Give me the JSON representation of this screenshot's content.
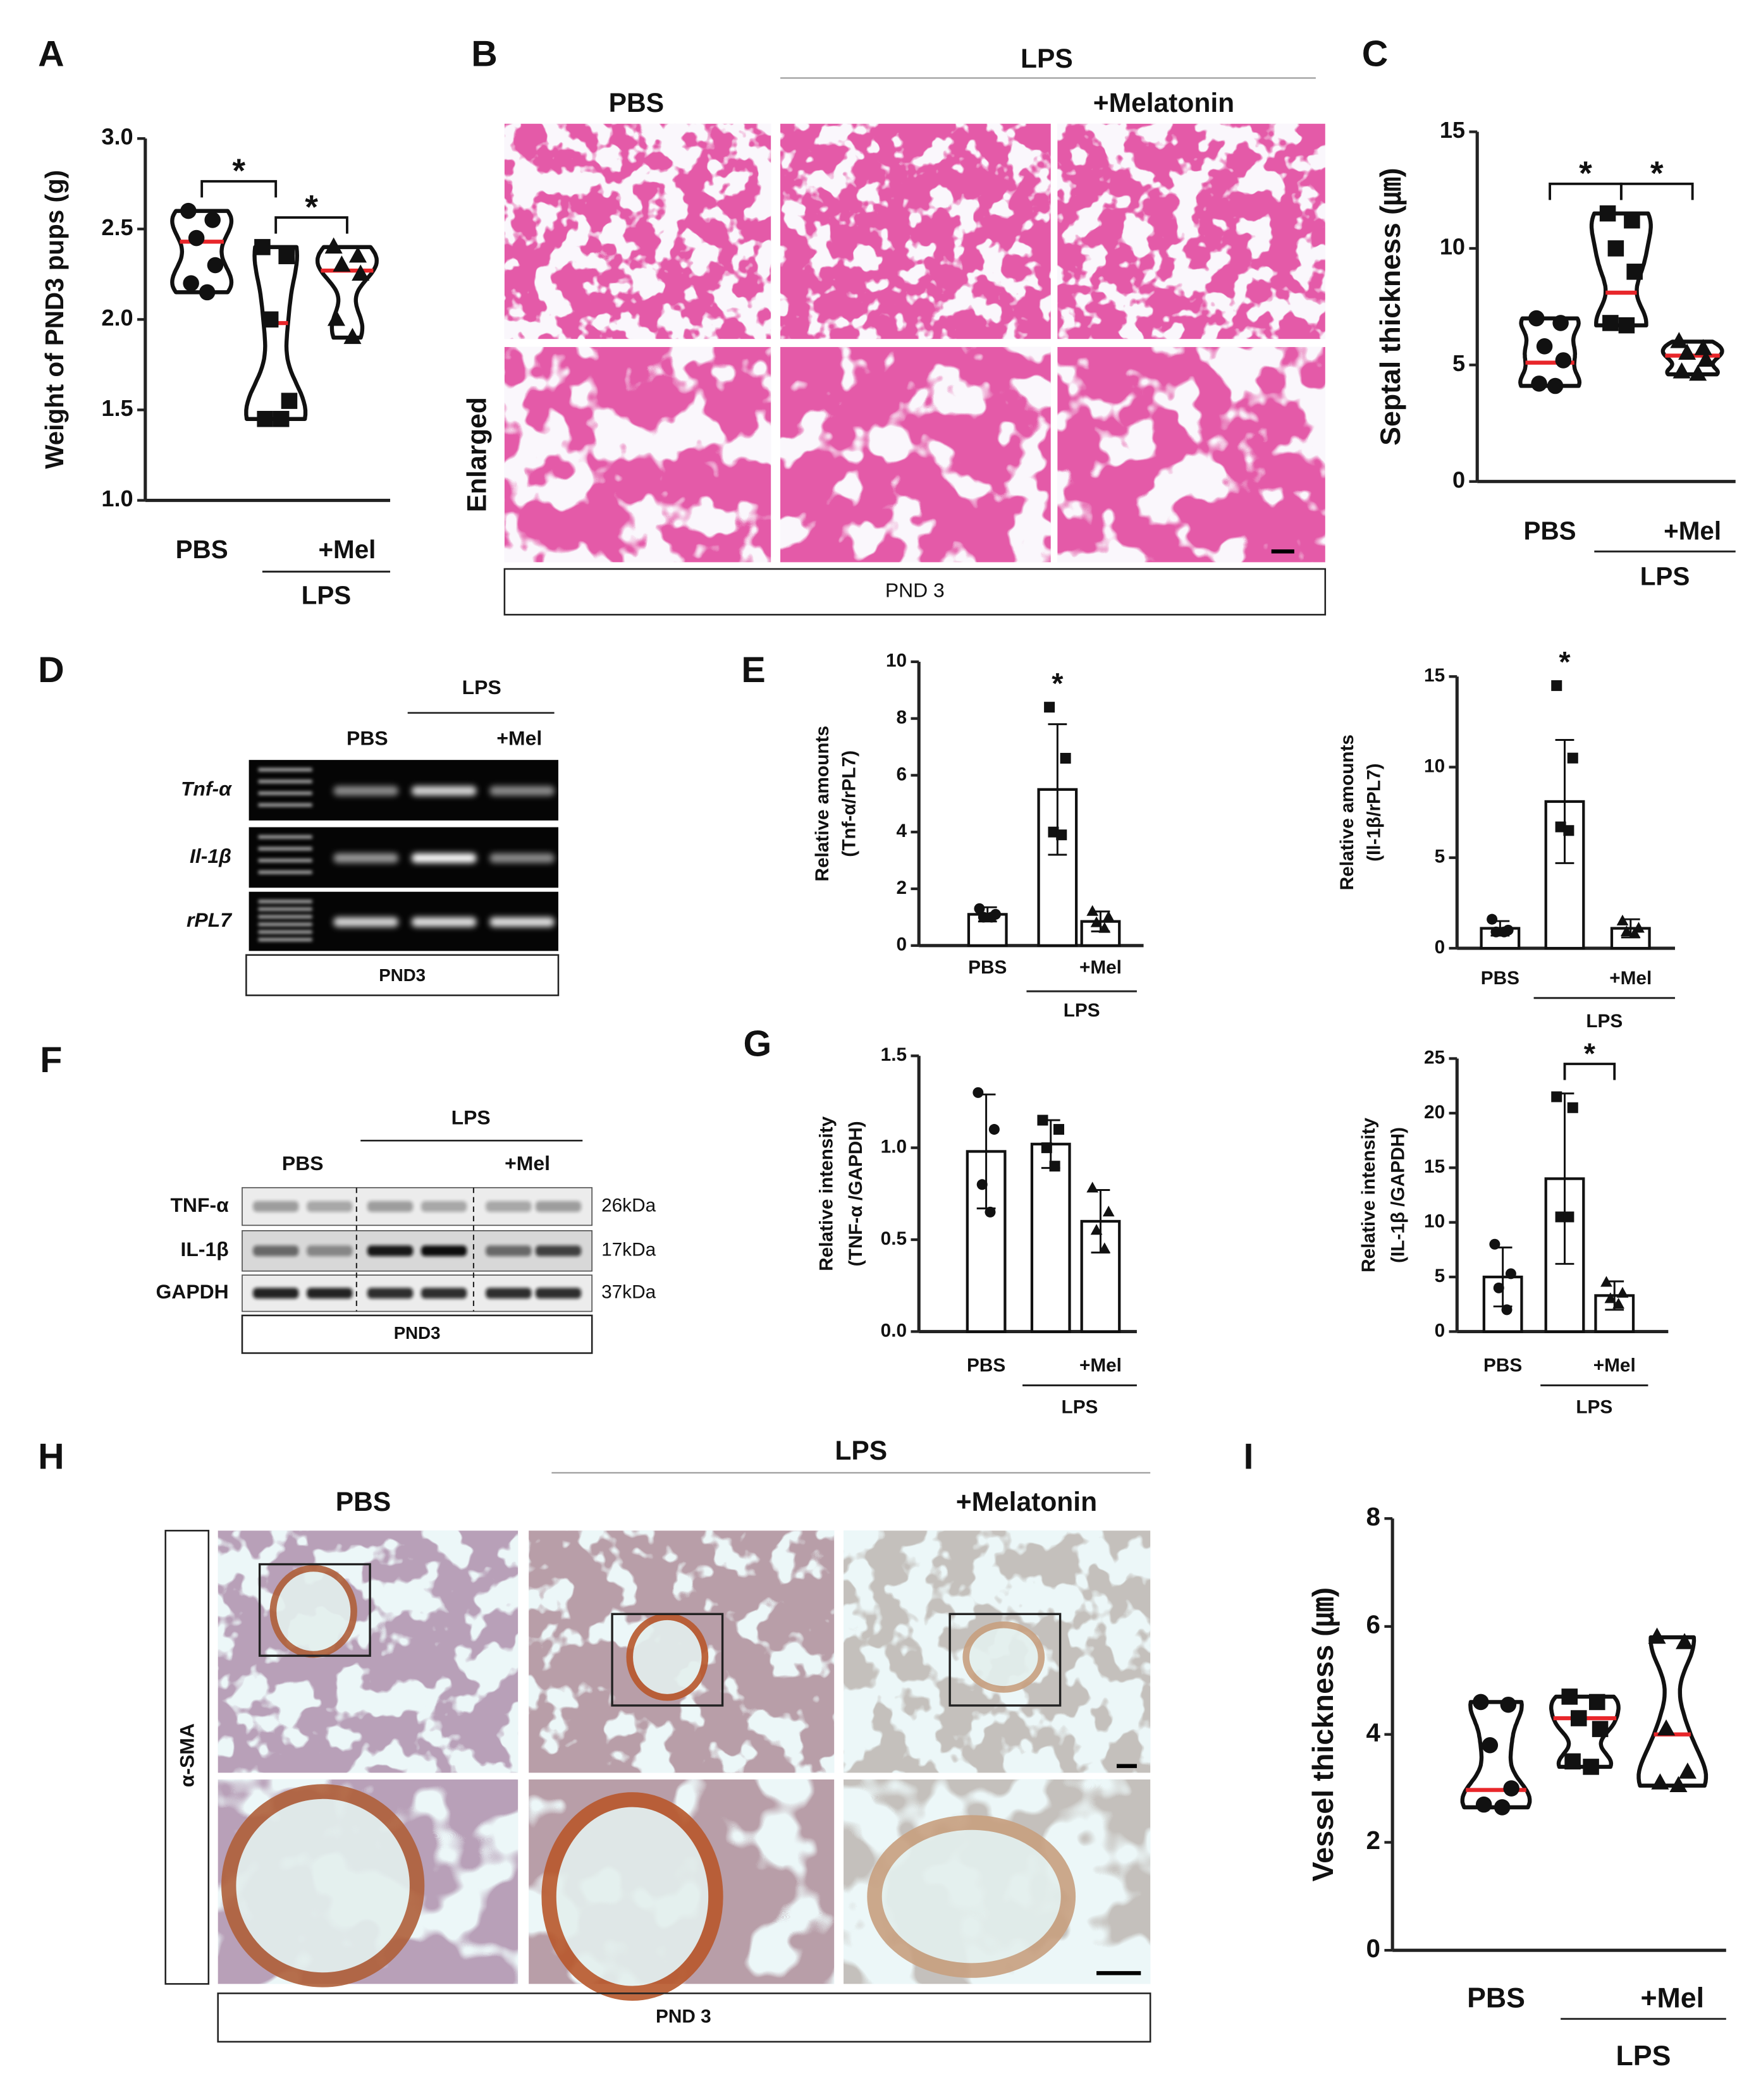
{
  "panels": {
    "letters": [
      "A",
      "B",
      "C",
      "D",
      "E",
      "F",
      "G",
      "H",
      "I"
    ],
    "B": {
      "columns": [
        "PBS",
        "+Melatonin"
      ],
      "group": "LPS",
      "row": "Enlarged",
      "footer": "PND 3"
    },
    "D": {
      "group": "LPS",
      "columns": [
        "PBS",
        "+Mel"
      ],
      "rows": [
        "Tnf-α",
        "Il-1β",
        "rPL7"
      ],
      "footer": "PND3"
    },
    "F": {
      "group": "LPS",
      "columns": [
        "PBS",
        "+Mel"
      ],
      "rows": [
        "TNF-α",
        "IL-1β",
        "GAPDH"
      ],
      "sizes": [
        "26kDa",
        "17kDa",
        "37kDa"
      ],
      "footer": "PND3"
    },
    "H": {
      "group": "LPS",
      "columns": [
        "PBS",
        "+Melatonin"
      ],
      "row": "α-SMA",
      "footer": "PND 3"
    }
  },
  "chart_data": [
    {
      "type": "violin",
      "ylabel": "Weight of PND3 pups (g)",
      "categories": [
        "PBS",
        null,
        "+Mel"
      ],
      "group_label": "LPS",
      "ylim": [
        1,
        3
      ],
      "yticks": [
        {
          "value": 1,
          "label": "1.0"
        },
        {
          "value": 1.5,
          "label": "1.5"
        },
        {
          "value": 2,
          "label": "2.0"
        },
        {
          "value": 2.5,
          "label": "2.5"
        },
        {
          "value": 3,
          "label": "3.0"
        }
      ],
      "markers": [
        "circle",
        "square",
        "triangle"
      ],
      "median_color": "#e8262a",
      "groups": [
        {
          "values": [
            2.6,
            2.55,
            2.45,
            2.3,
            2.2,
            2.15
          ],
          "median": 2.43
        },
        {
          "values": [
            2.4,
            2.35,
            2.0,
            1.55,
            1.45,
            1.45
          ],
          "median": 1.98
        },
        {
          "values": [
            2.4,
            2.35,
            2.3,
            2.25,
            2.0,
            1.9
          ],
          "median": 2.27
        }
      ],
      "significance": [
        {
          "from": 0,
          "to": 1,
          "label": "*"
        },
        {
          "from": 1,
          "to": 2,
          "label": "*"
        }
      ]
    },
    {
      "type": "violin",
      "ylabel": "Septal thickness (㎛)",
      "categories": [
        "PBS",
        null,
        "+Mel"
      ],
      "group_label": "LPS",
      "ylim": [
        0,
        15
      ],
      "yticks": [
        0,
        5,
        10,
        15
      ],
      "markers": [
        "circle",
        "square",
        "triangle"
      ],
      "median_color": "#e8262a",
      "groups": [
        {
          "values": [
            7,
            6.8,
            5.8,
            5.2,
            4.2,
            4.1
          ],
          "median": 5.1
        },
        {
          "values": [
            11.5,
            11.2,
            10,
            9,
            6.8,
            6.7
          ],
          "median": 8.1
        },
        {
          "values": [
            6,
            5.7,
            5.5,
            5.2,
            4.7,
            4.6
          ],
          "median": 5.4
        }
      ],
      "significance": [
        {
          "from": 0,
          "to": 1,
          "label": "*"
        },
        {
          "from": 1,
          "to": 2,
          "label": "*"
        }
      ]
    },
    {
      "type": "bar",
      "ylabel": [
        "Relative amounts",
        "(Tnf-α/rPL7)"
      ],
      "categories": [
        "PBS",
        null,
        "+Mel"
      ],
      "group_label": "LPS",
      "ylim": [
        0,
        10
      ],
      "yticks": [
        0,
        2,
        4,
        6,
        8,
        10
      ],
      "color": "#ffffff",
      "markers": [
        "circle",
        "square",
        "triangle"
      ],
      "values": [
        1.1,
        5.5,
        0.85
      ],
      "errors": [
        0.25,
        2.3,
        0.35
      ],
      "points": [
        [
          1.3,
          1.1,
          1.0,
          1.0
        ],
        [
          8.4,
          6.6,
          4.0,
          3.9
        ],
        [
          1.2,
          1.0,
          0.8,
          0.6
        ]
      ],
      "significance": [
        {
          "at": 1,
          "label": "*"
        }
      ]
    },
    {
      "type": "bar",
      "ylabel": [
        "Relative amounts",
        "(Il-1β/rPL7)"
      ],
      "categories": [
        "PBS",
        null,
        "+Mel"
      ],
      "group_label": "LPS",
      "ylim": [
        0,
        15
      ],
      "yticks": [
        0,
        5,
        10,
        15
      ],
      "color": "#ffffff",
      "markers": [
        "circle",
        "square",
        "triangle"
      ],
      "values": [
        1.1,
        8.1,
        1.1
      ],
      "errors": [
        0.4,
        3.4,
        0.5
      ],
      "points": [
        [
          1.6,
          1.0,
          0.9,
          0.9
        ],
        [
          14.5,
          10.5,
          6.7,
          6.5
        ],
        [
          1.5,
          1.1,
          0.9,
          0.8
        ]
      ],
      "significance": [
        {
          "at": 1,
          "label": "*"
        }
      ]
    },
    {
      "type": "bar",
      "ylabel": [
        "Relative intensity",
        "(TNF-α /GAPDH)"
      ],
      "categories": [
        "PBS",
        null,
        "+Mel"
      ],
      "group_label": "LPS",
      "ylim": [
        0,
        1.5
      ],
      "yticks": [
        {
          "value": 0,
          "label": "0.0"
        },
        {
          "value": 0.5,
          "label": "0.5"
        },
        {
          "value": 1,
          "label": "1.0"
        },
        {
          "value": 1.5,
          "label": "1.5"
        }
      ],
      "color": "#ffffff",
      "markers": [
        "circle",
        "square",
        "triangle"
      ],
      "values": [
        0.98,
        1.02,
        0.6
      ],
      "errors": [
        0.31,
        0.13,
        0.17
      ],
      "points": [
        [
          1.3,
          1.1,
          0.8,
          0.65
        ],
        [
          1.15,
          1.1,
          1.0,
          0.9
        ],
        [
          0.78,
          0.65,
          0.55,
          0.45
        ]
      ],
      "significance": []
    },
    {
      "type": "bar",
      "ylabel": [
        "Relative intensity",
        "(IL-1β /GAPDH)"
      ],
      "categories": [
        "PBS",
        null,
        "+Mel"
      ],
      "group_label": "LPS",
      "ylim": [
        0,
        25
      ],
      "yticks": [
        0,
        5,
        10,
        15,
        20,
        25
      ],
      "color": "#ffffff",
      "markers": [
        "circle",
        "square",
        "triangle"
      ],
      "values": [
        5,
        14,
        3.3
      ],
      "errors": [
        2.7,
        7.8,
        1.3
      ],
      "points": [
        [
          8,
          5.3,
          4,
          2
        ],
        [
          21.5,
          20.5,
          10.5,
          10.5
        ],
        [
          4.5,
          3.5,
          3,
          2.5
        ]
      ],
      "significance": [
        {
          "from": 1,
          "to": 2,
          "label": "*"
        }
      ]
    },
    {
      "type": "violin",
      "ylabel": "Vessel thickness (㎛)",
      "categories": [
        "PBS",
        null,
        "+Mel"
      ],
      "group_label": "LPS",
      "ylim": [
        0,
        8
      ],
      "yticks": [
        0,
        2,
        4,
        6,
        8
      ],
      "markers": [
        "circle",
        "square",
        "triangle"
      ],
      "median_color": "#e8262a",
      "groups": [
        {
          "values": [
            4.6,
            4.55,
            3.8,
            3.0,
            2.7,
            2.65
          ],
          "median": 2.97
        },
        {
          "values": [
            4.7,
            4.6,
            4.3,
            4.1,
            3.5,
            3.4
          ],
          "median": 4.3
        },
        {
          "values": [
            5.8,
            5.7,
            4.1,
            3.3,
            3.1,
            3.05
          ],
          "median": 4.0
        }
      ],
      "significance": []
    }
  ]
}
